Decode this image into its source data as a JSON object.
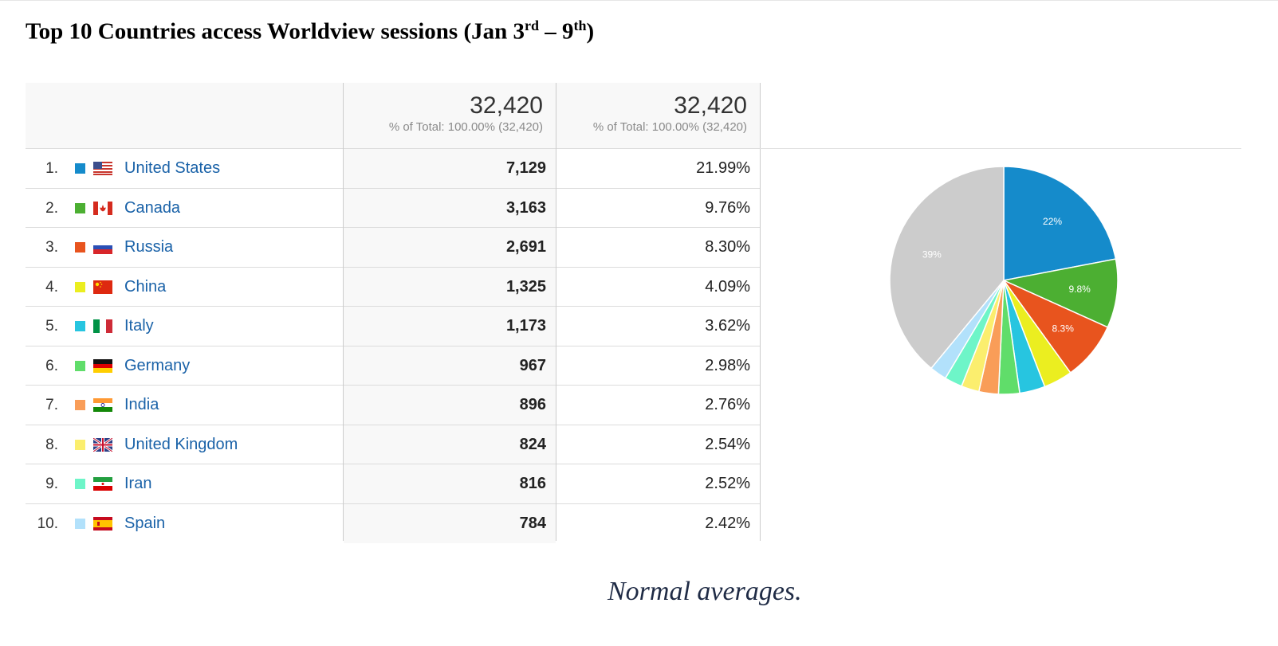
{
  "title": {
    "main": "Top 10 Countries access Worldview sessions (Jan 3",
    "sup1": "rd",
    "mid": " – 9",
    "sup2": "th",
    "end": ")"
  },
  "caption": "Normal averages.",
  "table": {
    "headers": [
      {
        "total": "32,420",
        "note": "% of Total: 100.00% (32,420)"
      },
      {
        "total": "32,420",
        "note": "% of Total: 100.00% (32,420)"
      }
    ],
    "rows": [
      {
        "rank": "1.",
        "country": "United States",
        "sessions": "7,129",
        "percent": "21.99%",
        "color": "#158bcb",
        "flag": "us"
      },
      {
        "rank": "2.",
        "country": "Canada",
        "sessions": "3,163",
        "percent": "9.76%",
        "color": "#4caf32",
        "flag": "ca"
      },
      {
        "rank": "3.",
        "country": "Russia",
        "sessions": "2,691",
        "percent": "8.30%",
        "color": "#e8541e",
        "flag": "ru"
      },
      {
        "rank": "4.",
        "country": "China",
        "sessions": "1,325",
        "percent": "4.09%",
        "color": "#ebee20",
        "flag": "cn"
      },
      {
        "rank": "5.",
        "country": "Italy",
        "sessions": "1,173",
        "percent": "3.62%",
        "color": "#27c5e0",
        "flag": "it"
      },
      {
        "rank": "6.",
        "country": "Germany",
        "sessions": "967",
        "percent": "2.98%",
        "color": "#60dd6a",
        "flag": "de"
      },
      {
        "rank": "7.",
        "country": "India",
        "sessions": "896",
        "percent": "2.76%",
        "color": "#f99d58",
        "flag": "in"
      },
      {
        "rank": "8.",
        "country": "United Kingdom",
        "sessions": "824",
        "percent": "2.54%",
        "color": "#fbee6e",
        "flag": "gb"
      },
      {
        "rank": "9.",
        "country": "Iran",
        "sessions": "816",
        "percent": "2.52%",
        "color": "#6ef5c8",
        "flag": "ir"
      },
      {
        "rank": "10.",
        "country": "Spain",
        "sessions": "784",
        "percent": "2.42%",
        "color": "#b2e1fb",
        "flag": "es"
      }
    ]
  },
  "chart_data": {
    "type": "pie",
    "categories": [
      "United States",
      "Canada",
      "Russia",
      "China",
      "Italy",
      "Germany",
      "India",
      "United Kingdom",
      "Iran",
      "Spain",
      ""
    ],
    "values": [
      21.99,
      9.76,
      8.3,
      4.09,
      3.62,
      2.98,
      2.76,
      2.54,
      2.52,
      2.42,
      39.02
    ],
    "colors": [
      "#158bcb",
      "#4caf32",
      "#e8541e",
      "#ebee20",
      "#27c5e0",
      "#60dd6a",
      "#f99d58",
      "#fbee6e",
      "#6ef5c8",
      "#b2e1fb",
      "#cccccc"
    ],
    "slice_labels": [
      "22%",
      "9.8%",
      "8.3%",
      "",
      "",
      "",
      "",
      "",
      "",
      "",
      "39%"
    ]
  }
}
